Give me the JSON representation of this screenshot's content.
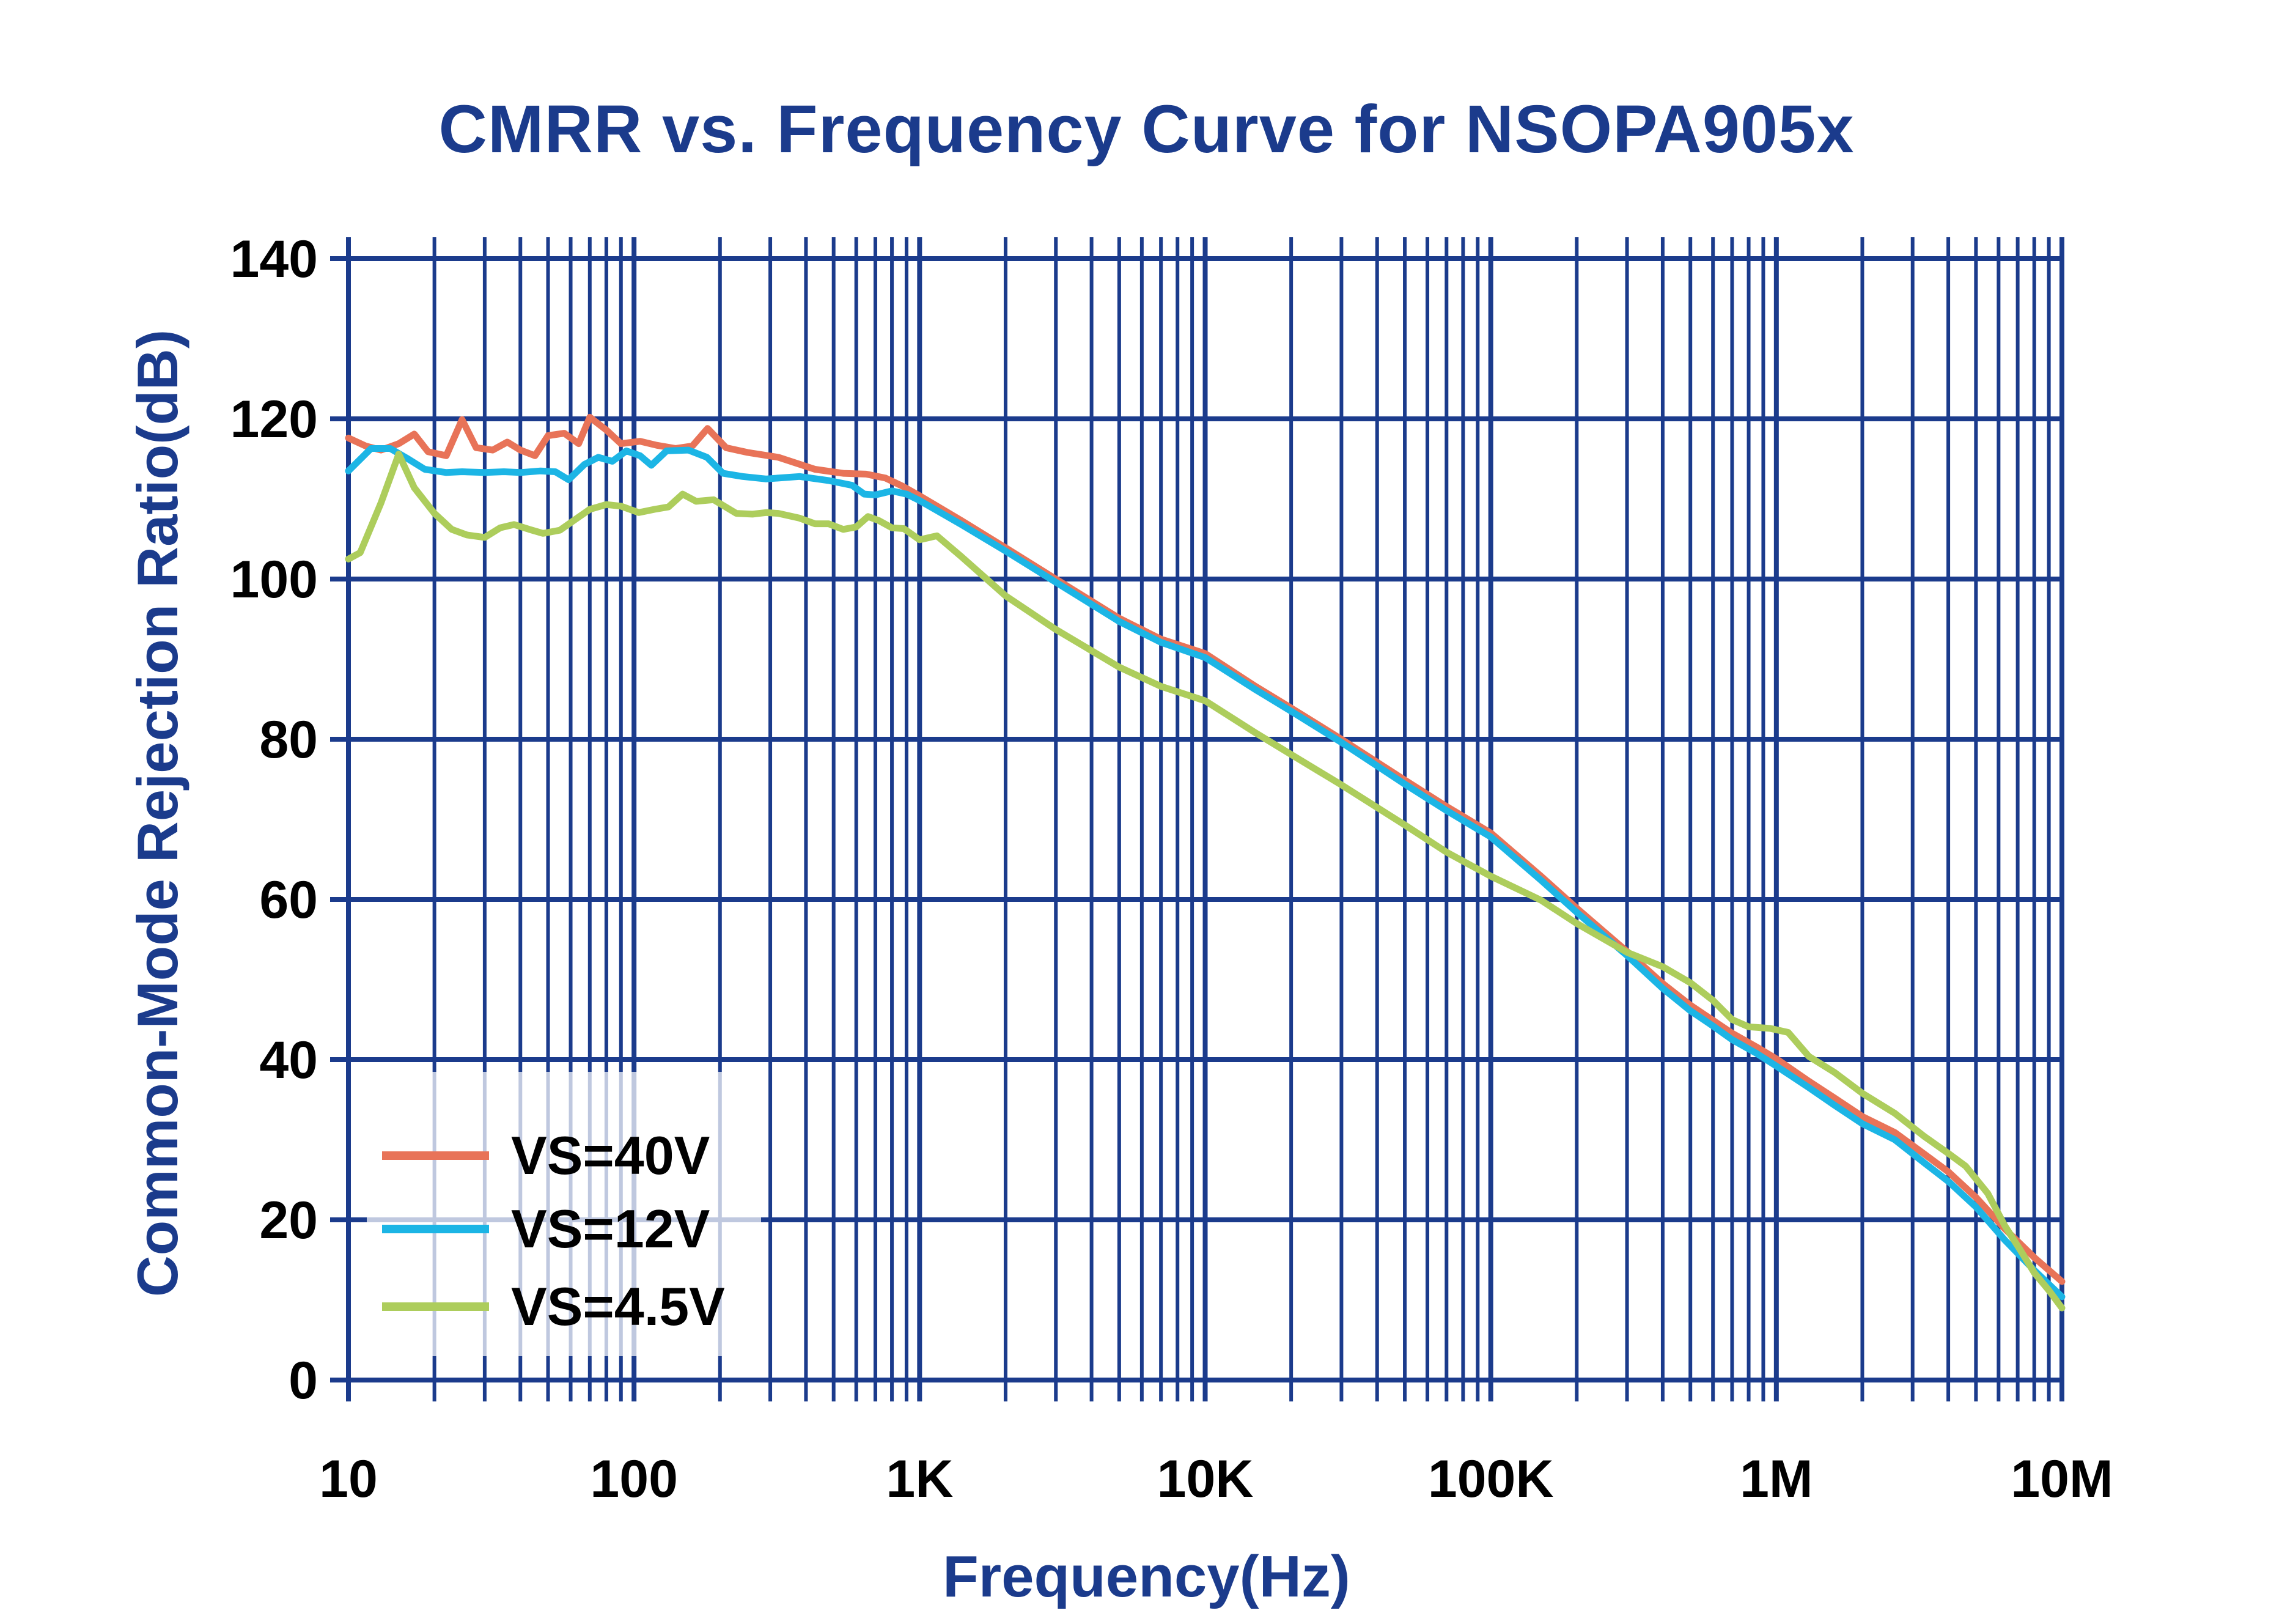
{
  "title": "CMRR vs. Frequency Curve for NSOPA905x",
  "colors": {
    "title_text": "#1b3b8c",
    "axis_title_text": "#1b3b8c",
    "grid": "#1b3b8c",
    "tick_text": "#000000",
    "background": "#ffffff",
    "series_vs40": "#e87358",
    "series_vs12": "#1cb5e5",
    "series_vs45": "#adcd5c"
  },
  "legend": {
    "items": [
      {
        "label": "VS=40V",
        "color": "#e87358"
      },
      {
        "label": "VS=12V",
        "color": "#1cb5e5"
      },
      {
        "label": "VS=4.5V",
        "color": "#adcd5c"
      }
    ]
  },
  "chart_data": {
    "type": "line",
    "title": "CMRR vs. Frequency Curve for NSOPA905x",
    "xlabel": "Frequency(Hz)",
    "ylabel": "Common-Mode Rejection Ratio(dB)",
    "x_scale": "log",
    "xlim": [
      10,
      10000000
    ],
    "ylim": [
      0,
      140
    ],
    "y_ticks": [
      0,
      20,
      40,
      60,
      80,
      100,
      120,
      140
    ],
    "x_decade_labels": [
      "10",
      "100",
      "1K",
      "10K",
      "100K",
      "1M",
      "10M"
    ],
    "grid": "major+minor",
    "legend_position": "lower-left",
    "series": [
      {
        "name": "VS=40V",
        "color": "#e87358",
        "points": [
          [
            10,
            117.6
          ],
          [
            11.5,
            116.6
          ],
          [
            13,
            116.1
          ],
          [
            15,
            116.9
          ],
          [
            17,
            118.1
          ],
          [
            19,
            115.9
          ],
          [
            22,
            115.4
          ],
          [
            25,
            119.9
          ],
          [
            28,
            116.4
          ],
          [
            32,
            116.1
          ],
          [
            36,
            117.1
          ],
          [
            40,
            116.1
          ],
          [
            45,
            115.4
          ],
          [
            50,
            117.9
          ],
          [
            57,
            118.2
          ],
          [
            64,
            116.9
          ],
          [
            70,
            120.2
          ],
          [
            80,
            118.6
          ],
          [
            90,
            116.9
          ],
          [
            105,
            117.2
          ],
          [
            120,
            116.7
          ],
          [
            140,
            116.3
          ],
          [
            160,
            116.6
          ],
          [
            181,
            118.8
          ],
          [
            210,
            116.4
          ],
          [
            250,
            115.8
          ],
          [
            320,
            115.2
          ],
          [
            430,
            113.7
          ],
          [
            540,
            113.2
          ],
          [
            650,
            113.1
          ],
          [
            760,
            112.6
          ],
          [
            870,
            111.6
          ],
          [
            1000,
            110.4
          ],
          [
            1400,
            107.3
          ],
          [
            2000,
            103.9
          ],
          [
            3000,
            100.0
          ],
          [
            5000,
            95.1
          ],
          [
            7000,
            92.5
          ],
          [
            10000,
            90.7
          ],
          [
            15000,
            86.6
          ],
          [
            20000,
            83.9
          ],
          [
            30000,
            80.0
          ],
          [
            50000,
            74.9
          ],
          [
            70000,
            71.6
          ],
          [
            100000,
            68.3
          ],
          [
            150000,
            62.9
          ],
          [
            200000,
            58.9
          ],
          [
            300000,
            53.5
          ],
          [
            400000,
            49.5
          ],
          [
            500000,
            46.8
          ],
          [
            600000,
            44.9
          ],
          [
            700000,
            43.3
          ],
          [
            850000,
            41.6
          ],
          [
            1000000,
            40.1
          ],
          [
            1300000,
            37.3
          ],
          [
            1600000,
            35.2
          ],
          [
            2000000,
            32.9
          ],
          [
            2600000,
            30.9
          ],
          [
            3300000,
            28.2
          ],
          [
            4000000,
            26.0
          ],
          [
            5000000,
            22.8
          ],
          [
            6300000,
            18.9
          ],
          [
            8000000,
            15.3
          ],
          [
            10000000,
            12.3
          ]
        ]
      },
      {
        "name": "VS=12V",
        "color": "#1cb5e5",
        "points": [
          [
            10,
            113.5
          ],
          [
            12,
            116.3
          ],
          [
            14,
            116.3
          ],
          [
            16,
            115.1
          ],
          [
            18.5,
            113.7
          ],
          [
            22,
            113.3
          ],
          [
            25,
            113.4
          ],
          [
            30,
            113.3
          ],
          [
            35,
            113.4
          ],
          [
            40,
            113.3
          ],
          [
            47,
            113.5
          ],
          [
            53,
            113.4
          ],
          [
            59,
            112.4
          ],
          [
            67,
            114.3
          ],
          [
            75,
            115.2
          ],
          [
            84,
            114.7
          ],
          [
            94,
            116.0
          ],
          [
            105,
            115.4
          ],
          [
            115,
            114.2
          ],
          [
            130,
            116.0
          ],
          [
            155,
            116.1
          ],
          [
            180,
            115.2
          ],
          [
            205,
            113.2
          ],
          [
            240,
            112.8
          ],
          [
            290,
            112.5
          ],
          [
            380,
            112.8
          ],
          [
            480,
            112.3
          ],
          [
            580,
            111.7
          ],
          [
            640,
            110.6
          ],
          [
            700,
            110.5
          ],
          [
            800,
            111.0
          ],
          [
            900,
            110.6
          ],
          [
            1000,
            109.8
          ],
          [
            1400,
            106.8
          ],
          [
            2000,
            103.5
          ],
          [
            3000,
            99.6
          ],
          [
            5000,
            94.7
          ],
          [
            7000,
            92.1
          ],
          [
            10000,
            90.2
          ],
          [
            15000,
            86.2
          ],
          [
            20000,
            83.5
          ],
          [
            30000,
            79.6
          ],
          [
            50000,
            74.4
          ],
          [
            70000,
            71.1
          ],
          [
            100000,
            67.8
          ],
          [
            150000,
            62.4
          ],
          [
            200000,
            58.4
          ],
          [
            300000,
            53.0
          ],
          [
            400000,
            48.9
          ],
          [
            500000,
            46.1
          ],
          [
            600000,
            44.2
          ],
          [
            700000,
            42.5
          ],
          [
            850000,
            40.8
          ],
          [
            1000000,
            39.2
          ],
          [
            1300000,
            36.5
          ],
          [
            1600000,
            34.3
          ],
          [
            2000000,
            32.0
          ],
          [
            2600000,
            30.0
          ],
          [
            3300000,
            27.1
          ],
          [
            4000000,
            24.8
          ],
          [
            5000000,
            21.6
          ],
          [
            6300000,
            17.5
          ],
          [
            8000000,
            13.7
          ],
          [
            10000000,
            10.4
          ]
        ]
      },
      {
        "name": "VS=4.5V",
        "color": "#adcd5c",
        "points": [
          [
            10,
            102.5
          ],
          [
            11,
            103.3
          ],
          [
            13,
            109.5
          ],
          [
            15,
            115.6
          ],
          [
            17,
            111.4
          ],
          [
            20,
            108.2
          ],
          [
            23,
            106.2
          ],
          [
            26,
            105.5
          ],
          [
            30,
            105.2
          ],
          [
            34,
            106.4
          ],
          [
            38,
            106.8
          ],
          [
            43,
            106.2
          ],
          [
            48,
            105.7
          ],
          [
            55,
            106.1
          ],
          [
            62,
            107.4
          ],
          [
            70,
            108.7
          ],
          [
            80,
            109.3
          ],
          [
            90,
            109.1
          ],
          [
            104,
            108.3
          ],
          [
            118,
            108.7
          ],
          [
            132,
            109.0
          ],
          [
            148,
            110.6
          ],
          [
            165,
            109.7
          ],
          [
            190,
            109.9
          ],
          [
            228,
            108.2
          ],
          [
            260,
            108.1
          ],
          [
            290,
            108.3
          ],
          [
            320,
            108.2
          ],
          [
            380,
            107.6
          ],
          [
            430,
            106.9
          ],
          [
            480,
            106.9
          ],
          [
            540,
            106.2
          ],
          [
            600,
            106.5
          ],
          [
            660,
            107.8
          ],
          [
            720,
            107.3
          ],
          [
            800,
            106.4
          ],
          [
            880,
            106.3
          ],
          [
            1000,
            104.9
          ],
          [
            1150,
            105.4
          ],
          [
            1400,
            102.8
          ],
          [
            2000,
            97.9
          ],
          [
            3000,
            93.7
          ],
          [
            5000,
            89.0
          ],
          [
            7000,
            86.6
          ],
          [
            10000,
            84.8
          ],
          [
            15000,
            80.8
          ],
          [
            20000,
            78.1
          ],
          [
            30000,
            74.3
          ],
          [
            50000,
            69.3
          ],
          [
            70000,
            65.9
          ],
          [
            100000,
            62.9
          ],
          [
            150000,
            59.9
          ],
          [
            200000,
            57.0
          ],
          [
            300000,
            53.4
          ],
          [
            400000,
            51.6
          ],
          [
            500000,
            49.6
          ],
          [
            600000,
            47.4
          ],
          [
            700000,
            45.0
          ],
          [
            800000,
            44.1
          ],
          [
            950000,
            43.9
          ],
          [
            1100000,
            43.4
          ],
          [
            1300000,
            40.4
          ],
          [
            1600000,
            38.4
          ],
          [
            2000000,
            35.8
          ],
          [
            2600000,
            33.3
          ],
          [
            3300000,
            30.4
          ],
          [
            4000000,
            28.3
          ],
          [
            4600000,
            26.7
          ],
          [
            5500000,
            23.3
          ],
          [
            6300000,
            19.3
          ],
          [
            7100000,
            16.4
          ],
          [
            8000000,
            13.4
          ],
          [
            9000000,
            11.2
          ],
          [
            10000000,
            9.0
          ]
        ]
      }
    ]
  }
}
